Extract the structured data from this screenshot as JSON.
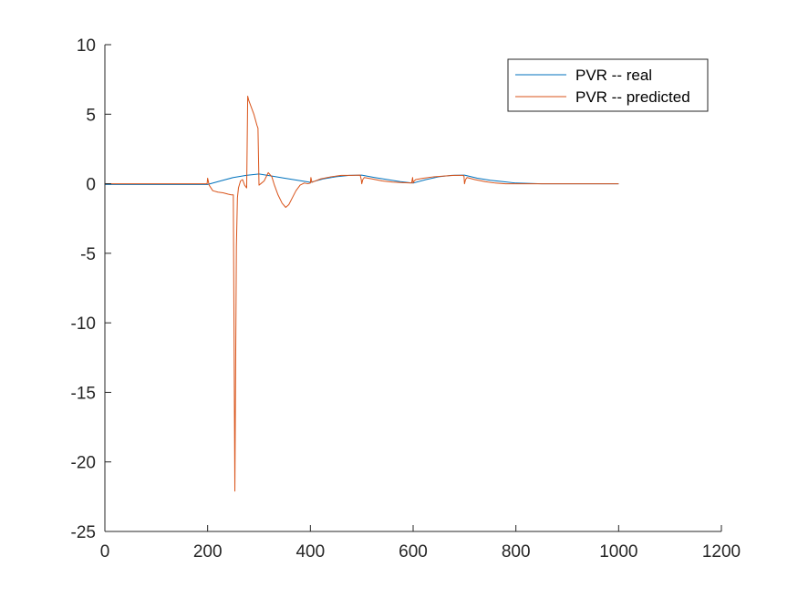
{
  "chart_data": {
    "type": "line",
    "title": "",
    "xlabel": "",
    "ylabel": "",
    "xlim": [
      0,
      1200
    ],
    "ylim": [
      -25,
      10
    ],
    "xticks": [
      0,
      200,
      400,
      600,
      800,
      1000,
      1200
    ],
    "yticks": [
      10,
      5,
      0,
      -5,
      -10,
      -15,
      -20,
      -25
    ],
    "grid": false,
    "legend_position": "top-right",
    "series": [
      {
        "name": "PVR -- real",
        "color": "#0072BD",
        "x": [
          0,
          200,
          225,
          250,
          275,
          300,
          325,
          350,
          375,
          400,
          425,
          450,
          475,
          500,
          525,
          550,
          575,
          600,
          625,
          650,
          675,
          700,
          725,
          750,
          775,
          800,
          850,
          900,
          950,
          1000
        ],
        "y": [
          -0.05,
          -0.05,
          0.2,
          0.45,
          0.6,
          0.7,
          0.55,
          0.4,
          0.25,
          0.1,
          0.35,
          0.5,
          0.6,
          0.62,
          0.45,
          0.3,
          0.15,
          0.05,
          0.3,
          0.5,
          0.6,
          0.62,
          0.4,
          0.25,
          0.15,
          0.05,
          0.0,
          0.0,
          0.0,
          0.0
        ]
      },
      {
        "name": "PVR -- predicted",
        "color": "#D95319",
        "x": [
          0,
          199,
          200,
          203,
          210,
          220,
          230,
          240,
          246,
          250,
          253,
          256,
          258,
          260,
          264,
          268,
          272,
          276,
          278,
          280,
          285,
          290,
          296,
          298,
          300,
          305,
          310,
          318,
          325,
          330,
          337,
          345,
          352,
          358,
          365,
          372,
          380,
          388,
          395,
          400,
          401,
          403,
          406,
          420,
          440,
          460,
          480,
          497,
          499,
          500,
          502,
          505,
          520,
          540,
          560,
          580,
          597,
          599,
          600,
          602,
          605,
          620,
          640,
          660,
          680,
          697,
          699,
          700,
          702,
          705,
          720,
          740,
          760,
          780,
          800,
          850,
          900,
          950,
          1000
        ],
        "y": [
          0.0,
          0.0,
          0.4,
          -0.1,
          -0.5,
          -0.6,
          -0.65,
          -0.75,
          -0.8,
          -0.8,
          -22.1,
          -4.5,
          -1.0,
          -0.3,
          0.2,
          0.3,
          -0.1,
          -0.3,
          6.3,
          6.0,
          5.5,
          5.0,
          4.2,
          4.0,
          -0.1,
          0.05,
          0.2,
          0.8,
          0.5,
          -0.1,
          -0.8,
          -1.4,
          -1.7,
          -1.5,
          -1.0,
          -0.5,
          -0.1,
          0.05,
          0.0,
          0.05,
          0.45,
          0.1,
          0.15,
          0.35,
          0.5,
          0.6,
          0.6,
          0.62,
          0.3,
          0.0,
          0.3,
          0.45,
          0.35,
          0.2,
          0.12,
          0.08,
          0.05,
          0.45,
          0.05,
          0.2,
          0.3,
          0.4,
          0.5,
          0.55,
          0.6,
          0.6,
          0.55,
          0.0,
          0.3,
          0.45,
          0.3,
          0.15,
          0.05,
          0.0,
          0.0,
          0.0,
          0.0,
          0.0,
          0.0
        ]
      }
    ]
  }
}
